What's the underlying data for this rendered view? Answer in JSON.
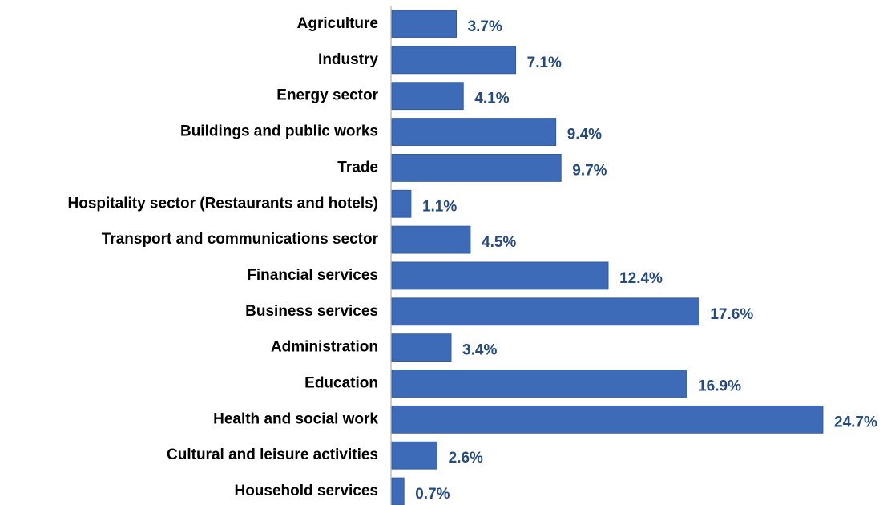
{
  "chart_data": {
    "type": "bar",
    "orientation": "horizontal",
    "categories": [
      "Agriculture",
      "Industry",
      "Energy sector",
      "Buildings and public works",
      "Trade",
      "Hospitality sector (Restaurants and hotels)",
      "Transport and communications sector",
      "Financial services",
      "Business services",
      "Administration",
      "Education",
      "Health and social work",
      "Cultural and leisure activities",
      "Household services"
    ],
    "values": [
      3.7,
      7.1,
      4.1,
      9.4,
      9.7,
      1.1,
      4.5,
      12.4,
      17.6,
      3.4,
      16.9,
      24.7,
      2.6,
      0.7
    ],
    "value_labels": [
      "3.7%",
      "7.1%",
      "4.1%",
      "9.4%",
      "9.7%",
      "1.1%",
      "4.5%",
      "12.4%",
      "17.6%",
      "3.4%",
      "16.9%",
      "24.7%",
      "2.6%",
      "0.7%"
    ],
    "color": "#3d6bb8"
  }
}
